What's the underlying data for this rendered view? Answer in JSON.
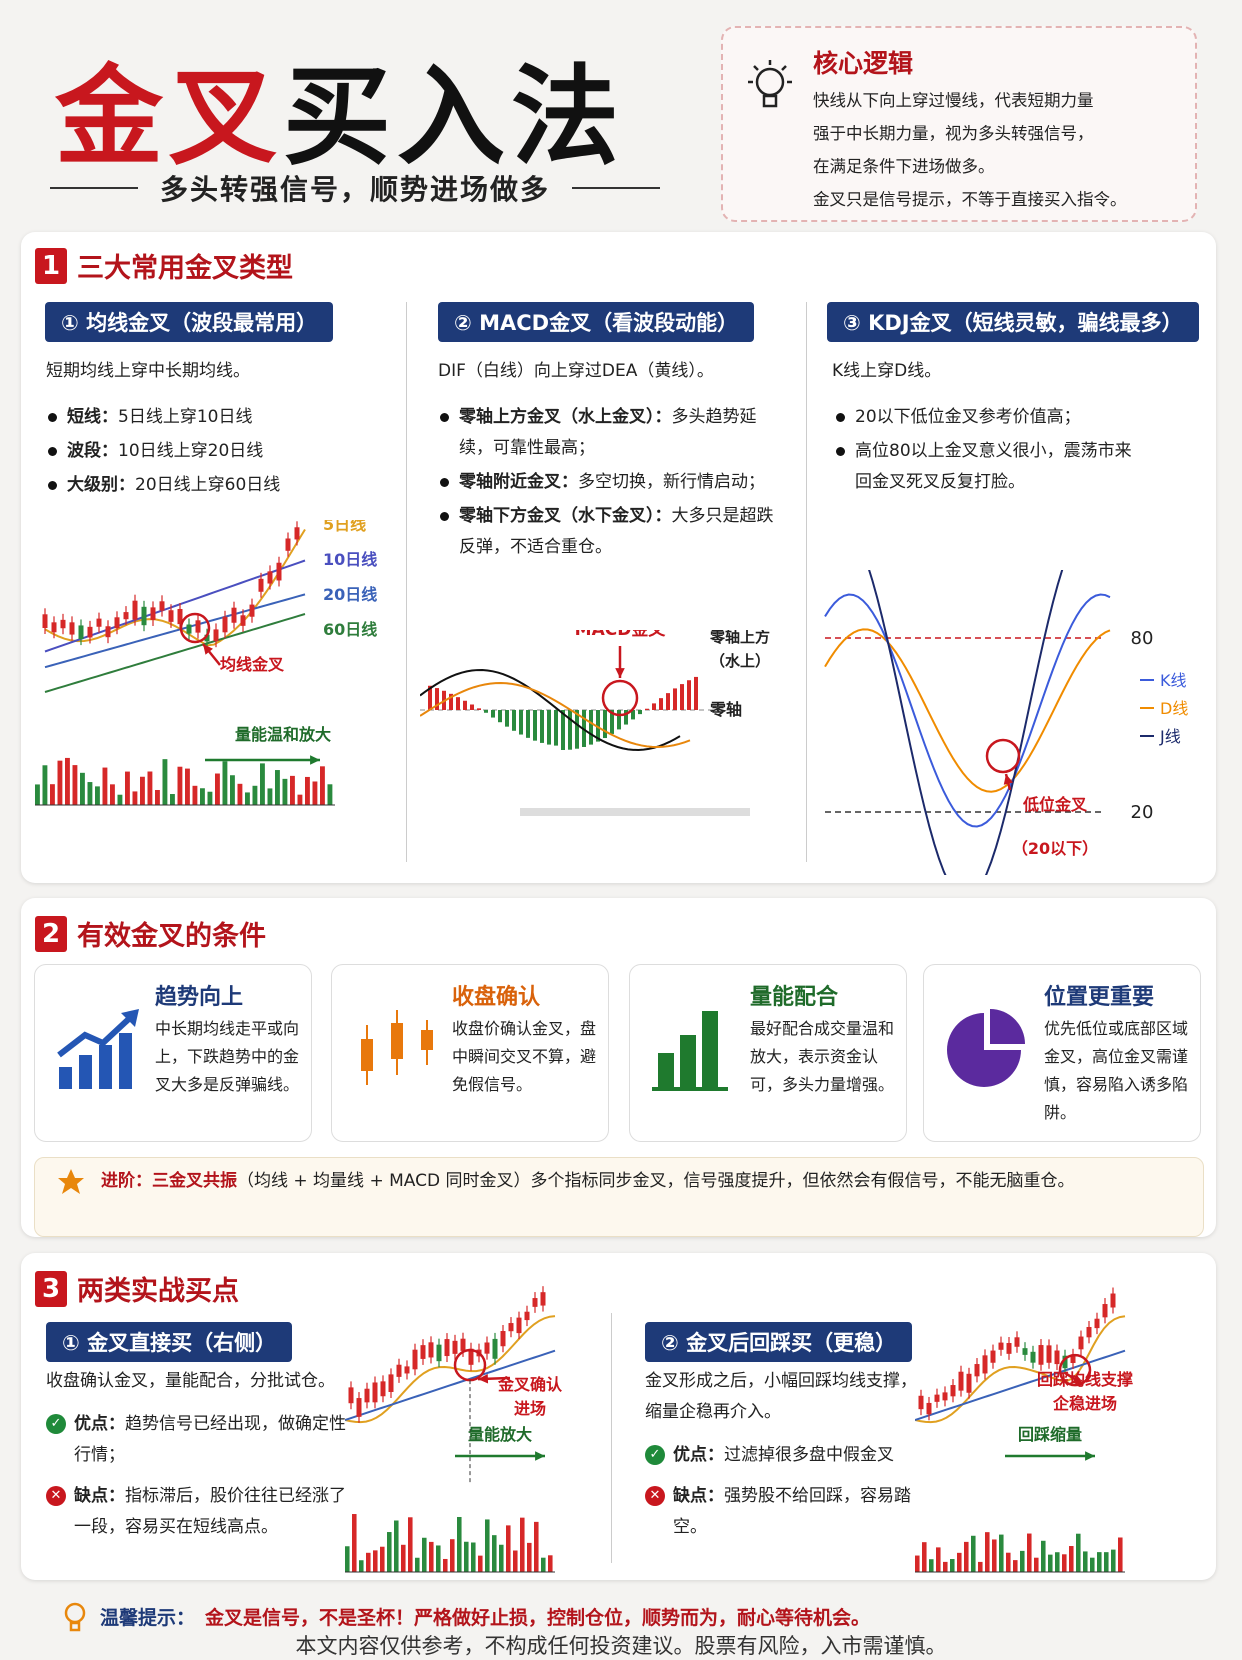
{
  "header": {
    "title_gold": "金叉",
    "title_rest": "买入法",
    "subtitle": "多头转强信号，顺势进场做多"
  },
  "core_logic": {
    "title": "核心逻辑",
    "lines": [
      "快线从下向上穿过慢线，代表短期力量",
      "强于中长期力量，视为多头转强信号，",
      "在满足条件下进场做多。",
      "金叉只是信号提示，不等于直接买入指令。"
    ]
  },
  "section1": {
    "number": "1",
    "title": "三大常用金叉类型",
    "columns": [
      {
        "heading": "① 均线金叉（波段最常用）",
        "desc": "短期均线上穿中长期均线。",
        "bullets": [
          {
            "label": "短线：",
            "text": "5日线上穿10日线"
          },
          {
            "label": "波段：",
            "text": "10日线上穿20日线"
          },
          {
            "label": "大级别：",
            "text": "20日线上穿60日线"
          }
        ],
        "chart_labels": [
          "5日线",
          "10日线",
          "20日线",
          "60日线"
        ],
        "cross_label": "均线金叉",
        "volume_label": "量能温和放大"
      },
      {
        "heading": "② MACD金叉（看波段动能）",
        "desc": "DIF（白线）向上穿过DEA（黄线）。",
        "bullets": [
          {
            "label": "零轴上方金叉（水上金叉）：",
            "text": "多头趋势延续，可靠性最高；"
          },
          {
            "label": "零轴附近金叉：",
            "text": "多空切换，新行情启动；"
          },
          {
            "label": "零轴下方金叉（水下金叉）：",
            "text": "大多只是超跌反弹，不适合重仓。"
          }
        ],
        "cross_label": "MACD金叉",
        "above_label": [
          "零轴上方",
          "（水上）"
        ],
        "zero_label": "零轴"
      },
      {
        "heading": "③ KDJ金叉（短线灵敏，骗线最多）",
        "desc": "K线上穿D线。",
        "bullets": [
          "20以下低位金叉参考价值高；",
          "高位80以上金叉意义很小，震荡市来回金叉死叉反复打脸。"
        ],
        "level_high": 80,
        "level_low": 20,
        "legend": [
          {
            "name": "K线",
            "color": "#3b5bdb"
          },
          {
            "name": "D线",
            "color": "#f08c00"
          },
          {
            "name": "J线",
            "color": "#1c2a6b"
          }
        ],
        "cross_label": [
          "低位金叉",
          "（20以下）"
        ]
      }
    ]
  },
  "section2": {
    "number": "2",
    "title": "有效金叉的条件",
    "cards": [
      {
        "title": "趋势向上",
        "text": "中长期均线走平或向上，下跌趋势中的金叉大多是反弹骗线。"
      },
      {
        "title": "收盘确认",
        "text": "收盘价确认金叉，盘中瞬间交叉不算，避免假信号。"
      },
      {
        "title": "量能配合",
        "text": "最好配合成交量温和放大，表示资金认可，多头力量增强。"
      },
      {
        "title": "位置更重要",
        "text": "优先低位或底部区域金叉，高位金叉需谨慎，容易陷入诱多陷阱。"
      }
    ],
    "advanced": {
      "label": "进阶：",
      "highlight": "三金叉共振",
      "text": "（均线 + 均量线 + MACD 同时金叉）多个指标同步金叉，信号强度提升，但依然会有假信号，不能无脑重仓。"
    }
  },
  "section3": {
    "number": "3",
    "title": "两类实战买点",
    "columns": [
      {
        "heading": "① 金叉直接买（右侧）",
        "desc": "收盘确认金叉，量能配合，分批试仓。",
        "pros": {
          "label": "优点：",
          "text": "趋势信号已经出现，做确定性行情；"
        },
        "cons": {
          "label": "缺点：",
          "text": "指标滞后，股价往往已经涨了一段，容易买在短线高点。"
        },
        "chart_label": [
          "金叉确认",
          "进场"
        ],
        "volume_label": "量能放大"
      },
      {
        "heading": "② 金叉后回踩买（更稳）",
        "desc": "金叉形成之后，小幅回踩均线支撑，缩量企稳再介入。",
        "pros": {
          "label": "优点：",
          "text": "过滤掉很多盘中假金叉"
        },
        "cons": {
          "label": "缺点：",
          "text": "强势股不给回踩，容易踏空。"
        },
        "chart_label": [
          "回踩均线支撑",
          "企稳进场"
        ],
        "volume_label": "回踩缩量"
      }
    ]
  },
  "footer": {
    "label": "温馨提示：",
    "text": "金叉是信号，不是圣杯！严格做好止损，控制仓位，顺势而为，耐心等待机会。",
    "disclaimer": "本文内容仅供参考，不构成任何投资建议。股票有风险，入市需谨慎。"
  }
}
